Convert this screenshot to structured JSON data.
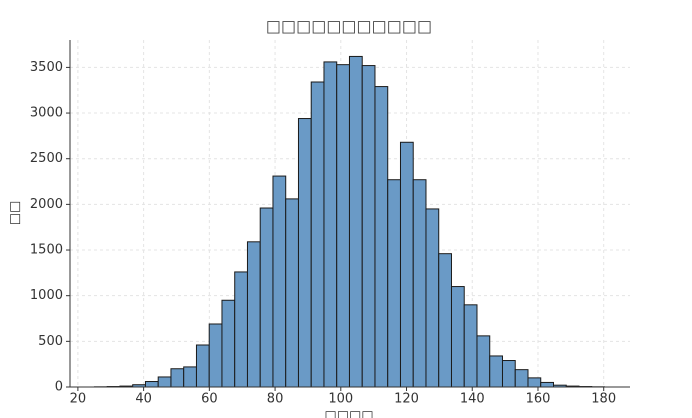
{
  "chart_data": {
    "type": "histogram",
    "title": "□□□□□□□□□□□",
    "x_label": "□□□□",
    "y_label": "□□",
    "bins": [
      25.04,
      28.92,
      32.8,
      36.68,
      40.56,
      44.44,
      48.32,
      52.2,
      56.08,
      59.96,
      63.84,
      67.72,
      71.6,
      75.48,
      79.36,
      83.24,
      87.12,
      91.0,
      94.88,
      98.76,
      102.64,
      106.52,
      110.4,
      114.28,
      118.16,
      122.04,
      125.92,
      129.8,
      133.68,
      137.56,
      141.44,
      145.32,
      149.2,
      153.08,
      156.96,
      160.84,
      164.72,
      168.6,
      172.48,
      176.36,
      180.24
    ],
    "values": [
      2,
      5,
      10,
      25,
      60,
      110,
      200,
      220,
      460,
      690,
      950,
      1260,
      1590,
      1960,
      2310,
      2060,
      2940,
      3340,
      3560,
      3530,
      3620,
      3520,
      3290,
      2270,
      2680,
      2270,
      1950,
      1460,
      1100,
      900,
      560,
      340,
      290,
      190,
      100,
      50,
      20,
      10,
      5,
      2
    ],
    "color": "#6a9ac6",
    "edgecolor": "#1a1a1a",
    "xlim": [
      17.6,
      188
    ],
    "xticks": [
      20,
      40,
      60,
      80,
      100,
      120,
      140,
      160,
      180
    ],
    "ylim": [
      0,
      3800
    ],
    "yticks": [
      0,
      500,
      1000,
      1500,
      2000,
      2500,
      3000,
      3500
    ],
    "grid": true
  }
}
